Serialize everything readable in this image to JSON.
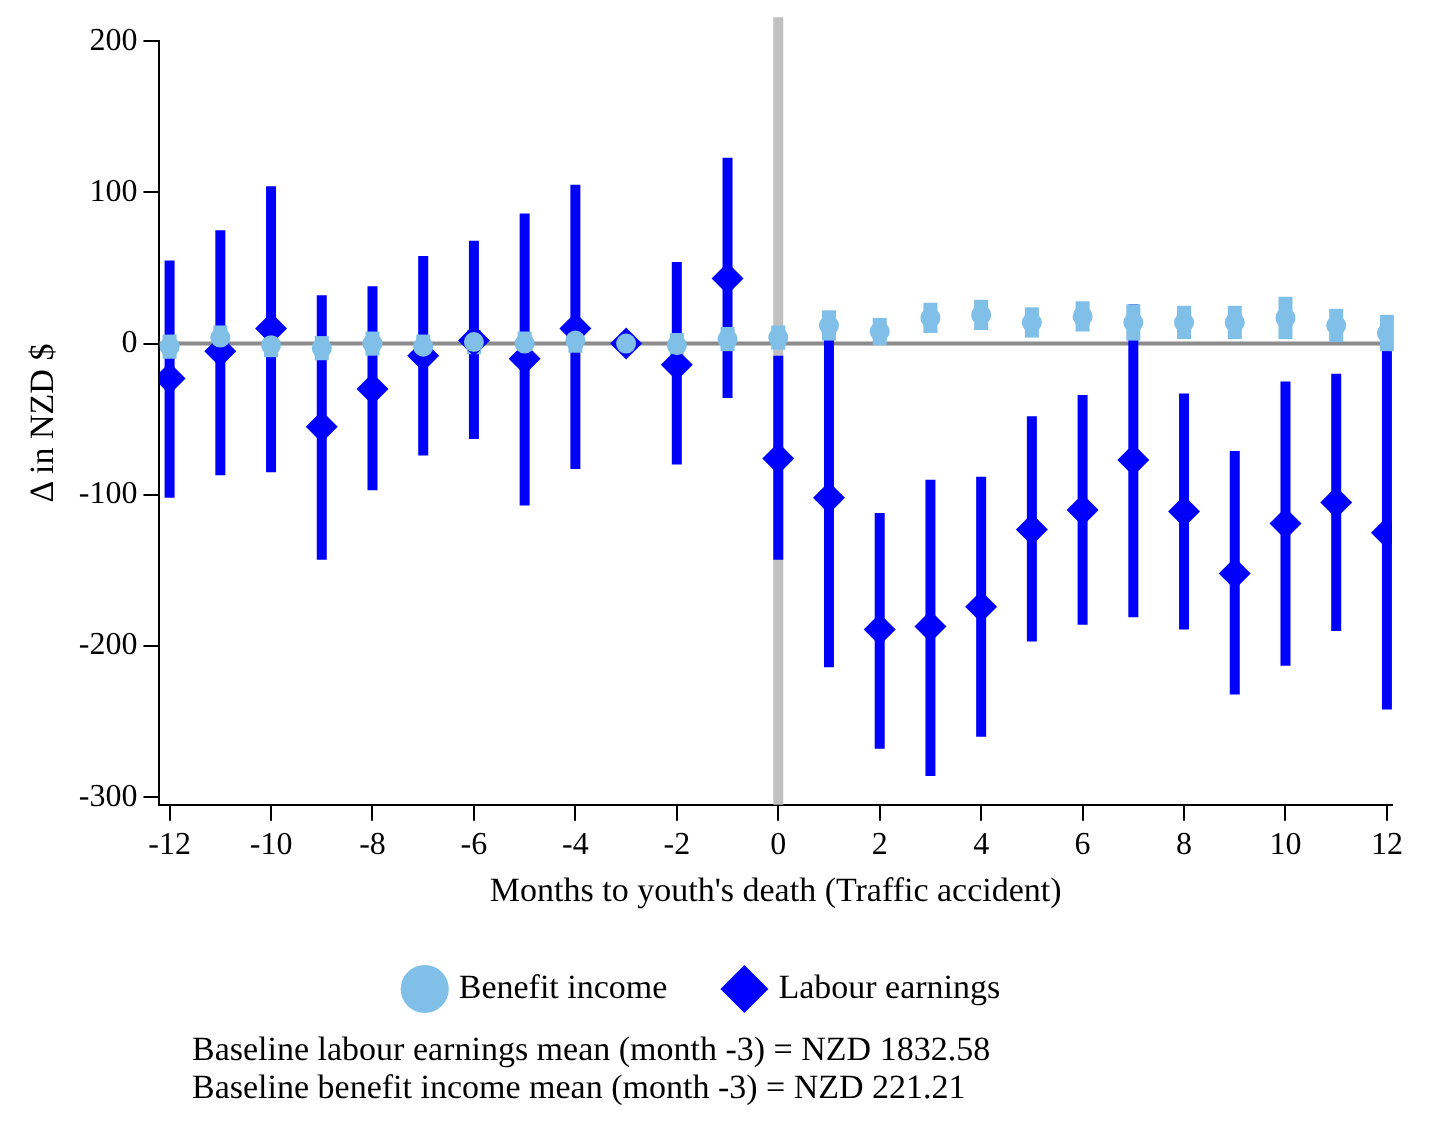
{
  "chart_data": {
    "type": "scatter",
    "xlabel": "Months to youth's death (Traffic accident)",
    "ylabel": "Δ in NZD $",
    "x": [
      -12,
      -11,
      -10,
      -9,
      -8,
      -7,
      -6,
      -5,
      -4,
      -3,
      -2,
      -1,
      0,
      1,
      2,
      3,
      4,
      5,
      6,
      7,
      8,
      9,
      10,
      11,
      12
    ],
    "series": [
      {
        "name": "Benefit income",
        "color": "#7fbfe8",
        "marker": "circle",
        "values": [
          -2,
          4,
          -1,
          -3,
          0,
          -2,
          1,
          0,
          2,
          0,
          -1,
          3,
          4,
          12,
          8,
          17,
          19,
          14,
          18,
          14,
          14,
          14,
          17,
          12,
          7
        ],
        "errors": [
          8,
          8,
          8,
          8,
          8,
          8,
          8,
          8,
          8,
          0,
          8,
          8,
          8,
          10,
          9,
          10,
          10,
          10,
          10,
          12,
          11,
          11,
          14,
          11,
          12
        ]
      },
      {
        "name": "Labour earnings",
        "color": "#0000ff",
        "marker": "diamond",
        "values": [
          -23,
          -5,
          10,
          -55,
          -30,
          -8,
          2,
          -10,
          10,
          0,
          -14,
          43,
          -76,
          -102,
          -189,
          -187,
          -174,
          -123,
          -110,
          -77,
          -111,
          -152,
          -119,
          -105,
          -125
        ],
        "errors": [
          [
            -102,
            55
          ],
          [
            -87,
            75
          ],
          [
            -85,
            104
          ],
          [
            -143,
            32
          ],
          [
            -97,
            38
          ],
          [
            -74,
            58
          ],
          [
            -63,
            68
          ],
          [
            -107,
            86
          ],
          [
            -83,
            105
          ],
          null,
          [
            -80,
            54
          ],
          [
            -36,
            123
          ],
          [
            -143,
            -8
          ],
          [
            -214,
            4
          ],
          [
            -268,
            -112
          ],
          [
            -286,
            -90
          ],
          [
            -260,
            -88
          ],
          [
            -197,
            -48
          ],
          [
            -186,
            -34
          ],
          [
            -181,
            26
          ],
          [
            -189,
            -33
          ],
          [
            -232,
            -71
          ],
          [
            -213,
            -25
          ],
          [
            -190,
            -20
          ],
          [
            -242,
            -2
          ]
        ]
      }
    ],
    "xlim": [
      -12.2,
      12.1
    ],
    "xticks": [
      -12,
      -10,
      -8,
      -6,
      -4,
      -2,
      0,
      2,
      4,
      6,
      8,
      10,
      12
    ],
    "ylim": [
      -305,
      200
    ],
    "yticks": [
      -300,
      -200,
      -100,
      0,
      100,
      200
    ],
    "ref_lines": [
      {
        "axis": "x",
        "value": 0,
        "color": "#c0c0c0"
      },
      {
        "axis": "y",
        "value": 0,
        "color": "#8c8c8c"
      }
    ],
    "grid": false,
    "legend": "bottom",
    "annotations": [
      "Baseline labour earnings mean (month -3) =  NZD 1832.58",
      "Baseline benefit income mean (month -3) =  NZD 221.21"
    ]
  }
}
